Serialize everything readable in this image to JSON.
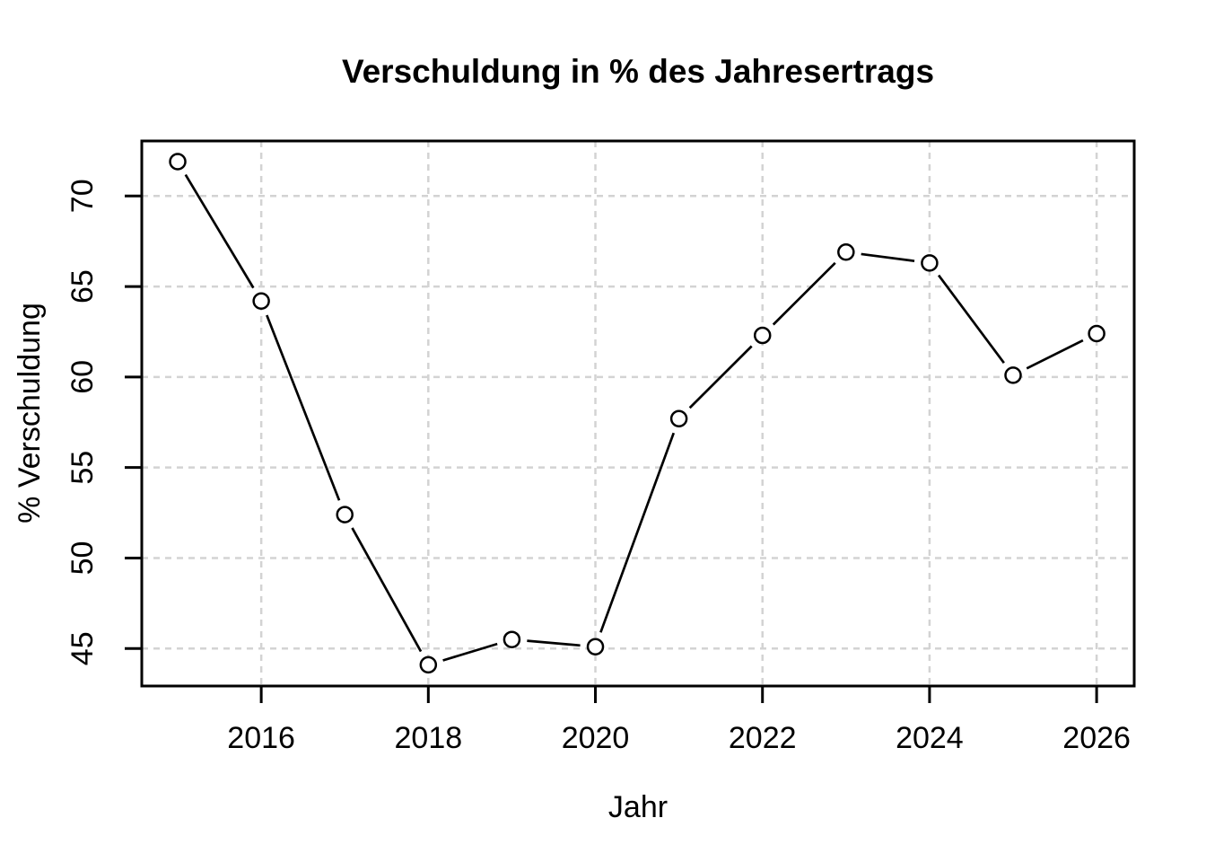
{
  "chart_data": {
    "type": "line",
    "title": "Verschuldung in % des Jahresertrags",
    "xlabel": "Jahr",
    "ylabel": "% Verschuldung",
    "x": [
      2015,
      2016,
      2017,
      2018,
      2019,
      2020,
      2021,
      2022,
      2023,
      2024,
      2025,
      2026
    ],
    "values": [
      71.9,
      64.2,
      52.4,
      44.1,
      45.5,
      45.1,
      57.7,
      62.3,
      66.9,
      66.3,
      60.1,
      62.4
    ],
    "xticks": [
      2016,
      2018,
      2020,
      2022,
      2024,
      2026
    ],
    "yticks": [
      45,
      50,
      55,
      60,
      65,
      70
    ],
    "xtick_labels": [
      "2016",
      "2018",
      "2020",
      "2022",
      "2024",
      "2026"
    ],
    "ytick_labels": [
      "45",
      "50",
      "55",
      "60",
      "65",
      "70"
    ],
    "xlim": [
      2014.57,
      2026.45
    ],
    "ylim": [
      42.93,
      73.04
    ],
    "grid": true,
    "grid_style": "dashed",
    "legend": "none",
    "marker": "open-circle",
    "line_color": "#000000",
    "marker_color": "#000000",
    "marker_fill": "#ffffff",
    "grid_color": "#d3d3d3",
    "axis_color": "#000000",
    "background": "#ffffff"
  }
}
